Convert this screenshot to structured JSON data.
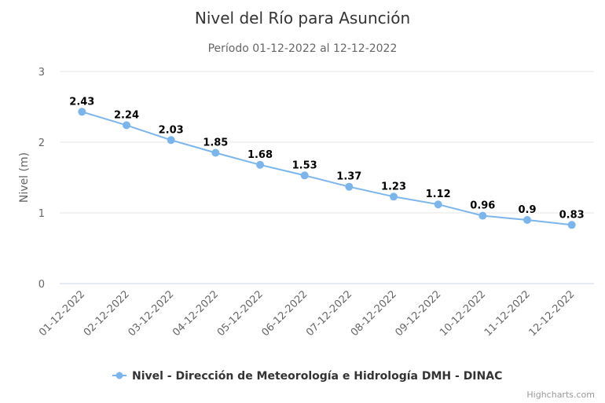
{
  "chart_data": {
    "type": "line",
    "title": "Nivel del Río para Asunción",
    "subtitle": "Período 01-12-2022 al 12-12-2022",
    "xlabel": "",
    "ylabel": "Nivel (m)",
    "ylim": [
      0,
      3
    ],
    "yticks": [
      "0",
      "1",
      "2",
      "3"
    ],
    "grid": true,
    "legend_position": "bottom",
    "categories": [
      "01-12-2022",
      "02-12-2022",
      "03-12-2022",
      "04-12-2022",
      "05-12-2022",
      "06-12-2022",
      "07-12-2022",
      "08-12-2022",
      "09-12-2022",
      "10-12-2022",
      "11-12-2022",
      "12-12-2022"
    ],
    "series": [
      {
        "name": "Nivel - Dirección de Meteorología e Hidrología DMH - DINAC",
        "color": "#7cb5ec",
        "values": [
          2.43,
          2.24,
          2.03,
          1.85,
          1.68,
          1.53,
          1.37,
          1.23,
          1.12,
          0.96,
          0.9,
          0.83
        ],
        "data_labels": [
          "2.43",
          "2.24",
          "2.03",
          "1.85",
          "1.68",
          "1.53",
          "1.37",
          "1.23",
          "1.12",
          "0.96",
          "0.9",
          "0.83"
        ]
      }
    ]
  },
  "credits": "Highcharts.com"
}
